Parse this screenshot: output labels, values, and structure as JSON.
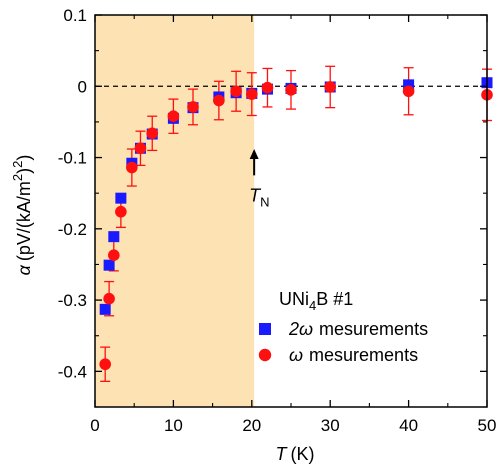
{
  "chart_data": {
    "type": "scatter",
    "xlabel_symbol": "T",
    "xlabel_unit": "(K)",
    "ylabel_symbol": "α",
    "ylabel_unit": "(pV/(kA/m",
    "ylabel_sup": "2",
    "ylabel_tail": ")",
    "ylabel_sup2": "2",
    "ylabel_end": ")",
    "xlim": [
      0,
      50
    ],
    "ylim": [
      -0.45,
      0.1
    ],
    "xticks": [
      0,
      10,
      20,
      30,
      40,
      50
    ],
    "xtick_labels": [
      "0",
      "10",
      "20",
      "30",
      "40",
      "50"
    ],
    "yticks": [
      0.1,
      0,
      -0.1,
      -0.2,
      -0.3,
      -0.4
    ],
    "ytick_labels": [
      "0.1",
      "0",
      "-0.1",
      "-0.2",
      "-0.3",
      "-0.4"
    ],
    "shaded_region": {
      "x_from": 0,
      "x_to": 20.3,
      "color": "#fde3b4"
    },
    "reference_line": {
      "y": 0,
      "style": "dashed"
    },
    "annotation": {
      "symbol": "T",
      "subscript": "N",
      "x": 20.3,
      "y_tip": -0.088,
      "y_tail": -0.125
    },
    "legend": {
      "title_main": "UNi",
      "title_sub": "4",
      "title_rest": "B #1",
      "entries": [
        {
          "symbol_text": "2ω",
          "text": "mesurements",
          "marker": "square",
          "color": "#1a1aff"
        },
        {
          "symbol_text": "ω",
          "text": "mesurements",
          "marker": "circle",
          "color": "#ff1010"
        }
      ],
      "placement": "bottom-right"
    },
    "series": [
      {
        "name": "2ω mesurements",
        "marker": "square",
        "color": "#1a1aff",
        "points": [
          {
            "x": 1.3,
            "y": -0.313
          },
          {
            "x": 1.8,
            "y": -0.251
          },
          {
            "x": 2.4,
            "y": -0.211
          },
          {
            "x": 3.3,
            "y": -0.157
          },
          {
            "x": 4.7,
            "y": -0.108
          },
          {
            "x": 5.8,
            "y": -0.087
          },
          {
            "x": 7.3,
            "y": -0.067
          },
          {
            "x": 10.0,
            "y": -0.045
          },
          {
            "x": 12.5,
            "y": -0.03
          },
          {
            "x": 15.8,
            "y": -0.015
          },
          {
            "x": 18.0,
            "y": -0.009
          },
          {
            "x": 20.0,
            "y": -0.01
          },
          {
            "x": 22.0,
            "y": -0.004
          },
          {
            "x": 25.0,
            "y": -0.003
          },
          {
            "x": 30.0,
            "y": -0.001
          },
          {
            "x": 40.0,
            "y": 0.002
          },
          {
            "x": 50.0,
            "y": 0.005
          }
        ]
      },
      {
        "name": "ω mesurements",
        "marker": "circle",
        "color": "#ff1010",
        "points": [
          {
            "x": 1.3,
            "y": -0.39,
            "err": 0.024
          },
          {
            "x": 1.8,
            "y": -0.298,
            "err": 0.024
          },
          {
            "x": 2.4,
            "y": -0.237,
            "err": 0.022
          },
          {
            "x": 3.3,
            "y": -0.176,
            "err": 0.022
          },
          {
            "x": 4.7,
            "y": -0.114,
            "err": 0.026
          },
          {
            "x": 5.8,
            "y": -0.087,
            "err": 0.024
          },
          {
            "x": 7.3,
            "y": -0.066,
            "err": 0.024
          },
          {
            "x": 10.0,
            "y": -0.042,
            "err": 0.024
          },
          {
            "x": 12.5,
            "y": -0.029,
            "err": 0.025
          },
          {
            "x": 15.8,
            "y": -0.02,
            "err": 0.027
          },
          {
            "x": 18.0,
            "y": -0.007,
            "err": 0.028
          },
          {
            "x": 20.0,
            "y": -0.011,
            "err": 0.03
          },
          {
            "x": 22.0,
            "y": -0.002,
            "err": 0.027
          },
          {
            "x": 25.0,
            "y": -0.005,
            "err": 0.027
          },
          {
            "x": 30.0,
            "y": -0.001,
            "err": 0.029
          },
          {
            "x": 40.0,
            "y": -0.007,
            "err": 0.033
          },
          {
            "x": 50.0,
            "y": -0.012,
            "err": 0.036
          }
        ]
      }
    ]
  }
}
